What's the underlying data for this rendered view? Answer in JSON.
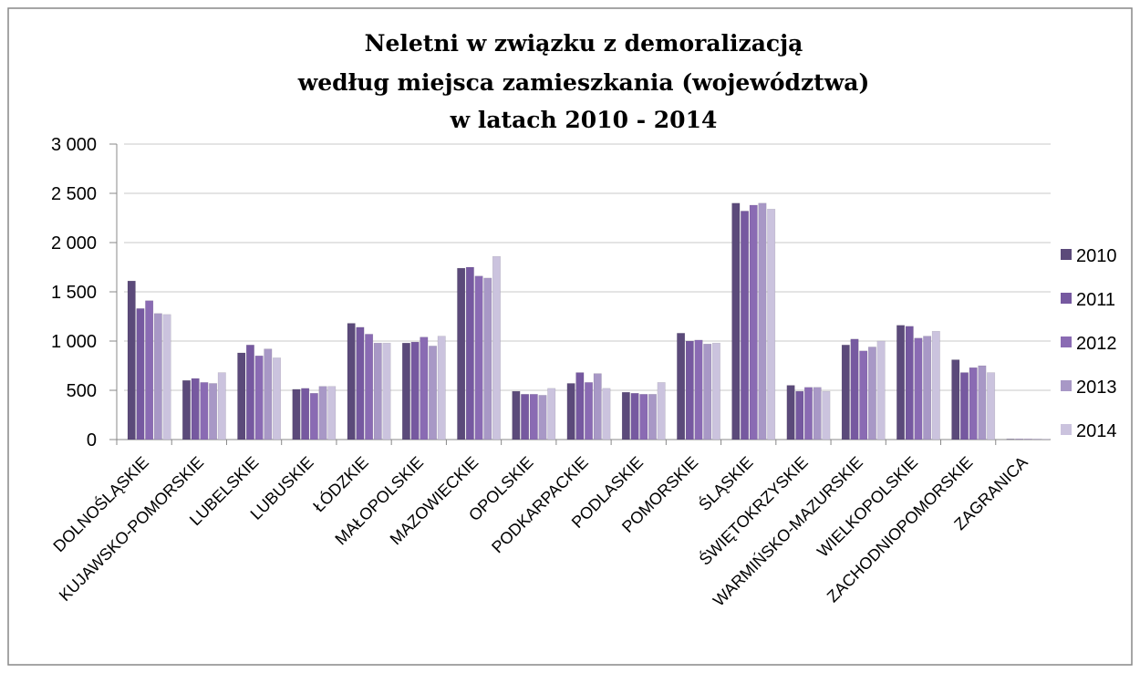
{
  "chart_data": {
    "type": "bar",
    "title": [
      "Neletni w związku z demoralizacją",
      "według miejsca zamieszkania (województwa)",
      "w latach 2010 - 2014"
    ],
    "categories": [
      "DOLNOŚLĄSKIE",
      "KUJAWSKO-POMORSKIE",
      "LUBELSKIE",
      "LUBUSKIE",
      "ŁÓDZKIE",
      "MAŁOPOLSKIE",
      "MAZOWIECKIE",
      "OPOLSKIE",
      "PODKARPACKIE",
      "PODLASKIE",
      "POMORSKIE",
      "ŚLĄSKIE",
      "ŚWIĘTOKRZYSKIE",
      "WARMIŃSKO-MAZURSKIE",
      "WIELKOPOLSKIE",
      "ZACHODNIOPOMORSKIE",
      "ZAGRANICA"
    ],
    "series": [
      {
        "name": "2010",
        "color": "#5b4a7a",
        "values": [
          1610,
          600,
          880,
          510,
          1180,
          980,
          1740,
          490,
          570,
          480,
          1080,
          2400,
          550,
          960,
          1160,
          810,
          5
        ]
      },
      {
        "name": "2011",
        "color": "#7659a0",
        "values": [
          1330,
          620,
          960,
          520,
          1140,
          990,
          1750,
          460,
          680,
          470,
          1000,
          2320,
          490,
          1020,
          1150,
          680,
          5
        ]
      },
      {
        "name": "2012",
        "color": "#8a6bb3",
        "values": [
          1410,
          580,
          850,
          470,
          1070,
          1040,
          1660,
          460,
          580,
          460,
          1010,
          2380,
          530,
          900,
          1030,
          730,
          5
        ]
      },
      {
        "name": "2013",
        "color": "#a898c6",
        "values": [
          1280,
          570,
          920,
          540,
          980,
          950,
          1640,
          450,
          670,
          460,
          970,
          2400,
          530,
          940,
          1050,
          750,
          5
        ]
      },
      {
        "name": "2014",
        "color": "#cbc3de",
        "values": [
          1270,
          680,
          830,
          540,
          980,
          1050,
          1860,
          520,
          520,
          580,
          980,
          2340,
          490,
          1000,
          1100,
          680,
          5
        ]
      }
    ],
    "ylim": [
      0,
      3000
    ],
    "yticks": [
      0,
      500,
      {
        "value": 1000,
        "label": "1 000"
      },
      {
        "value": 1500,
        "label": "1 500"
      },
      {
        "value": 2000,
        "label": "2 000"
      },
      {
        "value": 2500,
        "label": "2 500"
      },
      {
        "value": 3000,
        "label": "3 000"
      }
    ],
    "grid": true,
    "legend": "right"
  }
}
